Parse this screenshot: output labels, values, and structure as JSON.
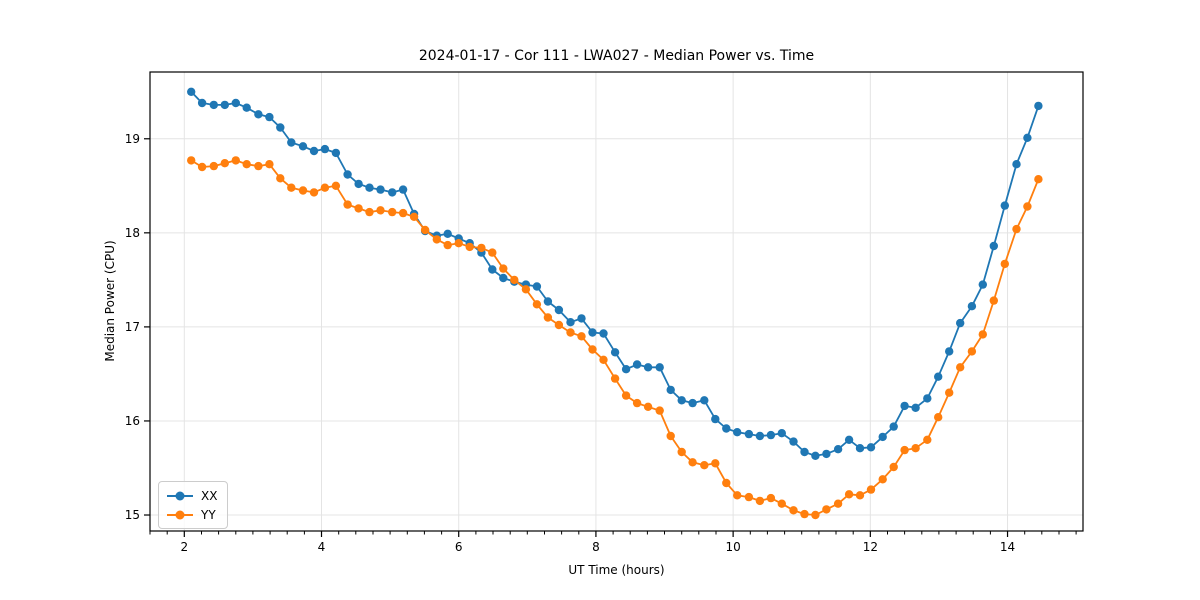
{
  "figure": {
    "background": "#ffffff"
  },
  "chart_data": {
    "type": "line",
    "title": "2024-01-17 - Cor 111 - LWA027 - Median Power vs. Time",
    "xlabel": "UT Time (hours)",
    "ylabel": "Median Power (CPU)",
    "xlim": [
      1.5,
      15.1
    ],
    "ylim": [
      14.83,
      19.71
    ],
    "xticks": [
      2,
      4,
      6,
      8,
      10,
      12,
      14
    ],
    "yticks": [
      15,
      16,
      17,
      18,
      19
    ],
    "minor_xtick_step": 0.25,
    "grid": true,
    "grid_color": "#e4e4e4",
    "legend_position": "lower left",
    "x": [
      2.1,
      2.26,
      2.43,
      2.59,
      2.75,
      2.91,
      3.08,
      3.24,
      3.4,
      3.56,
      3.73,
      3.89,
      4.05,
      4.21,
      4.38,
      4.54,
      4.7,
      4.86,
      5.03,
      5.19,
      5.35,
      5.51,
      5.68,
      5.84,
      6.0,
      6.16,
      6.33,
      6.49,
      6.65,
      6.81,
      6.98,
      7.14,
      7.3,
      7.46,
      7.63,
      7.79,
      7.95,
      8.11,
      8.28,
      8.44,
      8.6,
      8.76,
      8.93,
      9.09,
      9.25,
      9.41,
      9.58,
      9.74,
      9.9,
      10.06,
      10.23,
      10.39,
      10.55,
      10.71,
      10.88,
      11.04,
      11.2,
      11.36,
      11.53,
      11.69,
      11.85,
      12.01,
      12.18,
      12.34,
      12.5,
      12.66,
      12.83,
      12.99,
      13.15,
      13.31,
      13.48,
      13.64,
      13.8,
      13.96,
      14.13,
      14.29,
      14.45
    ],
    "series": [
      {
        "name": "XX",
        "color": "#1f77b4",
        "values": [
          19.5,
          19.38,
          19.36,
          19.36,
          19.38,
          19.33,
          19.26,
          19.23,
          19.12,
          18.96,
          18.92,
          18.87,
          18.89,
          18.85,
          18.62,
          18.52,
          18.48,
          18.46,
          18.43,
          18.46,
          18.2,
          18.02,
          17.97,
          17.99,
          17.94,
          17.89,
          17.79,
          17.61,
          17.52,
          17.48,
          17.45,
          17.43,
          17.27,
          17.18,
          17.05,
          17.09,
          16.94,
          16.93,
          16.73,
          16.55,
          16.6,
          16.57,
          16.57,
          16.33,
          16.22,
          16.19,
          16.22,
          16.02,
          15.92,
          15.88,
          15.86,
          15.84,
          15.85,
          15.87,
          15.78,
          15.67,
          15.63,
          15.65,
          15.7,
          15.8,
          15.71,
          15.72,
          15.83,
          15.94,
          16.16,
          16.14,
          16.24,
          16.47,
          16.74,
          17.04,
          17.22,
          17.45,
          17.86,
          18.29,
          18.73,
          19.01,
          19.35
        ]
      },
      {
        "name": "YY",
        "color": "#ff7f0e",
        "values": [
          18.77,
          18.7,
          18.71,
          18.74,
          18.77,
          18.73,
          18.71,
          18.73,
          18.58,
          18.48,
          18.45,
          18.43,
          18.48,
          18.5,
          18.3,
          18.26,
          18.22,
          18.24,
          18.22,
          18.21,
          18.17,
          18.03,
          17.93,
          17.87,
          17.89,
          17.85,
          17.84,
          17.79,
          17.62,
          17.5,
          17.4,
          17.24,
          17.1,
          17.02,
          16.94,
          16.9,
          16.76,
          16.65,
          16.45,
          16.27,
          16.19,
          16.15,
          16.11,
          15.84,
          15.67,
          15.56,
          15.53,
          15.55,
          15.34,
          15.21,
          15.19,
          15.15,
          15.18,
          15.12,
          15.05,
          15.01,
          15.0,
          15.06,
          15.12,
          15.22,
          15.21,
          15.27,
          15.38,
          15.51,
          15.69,
          15.71,
          15.8,
          16.04,
          16.3,
          16.57,
          16.74,
          16.92,
          17.28,
          17.67,
          18.04,
          18.28,
          18.57
        ]
      }
    ]
  }
}
